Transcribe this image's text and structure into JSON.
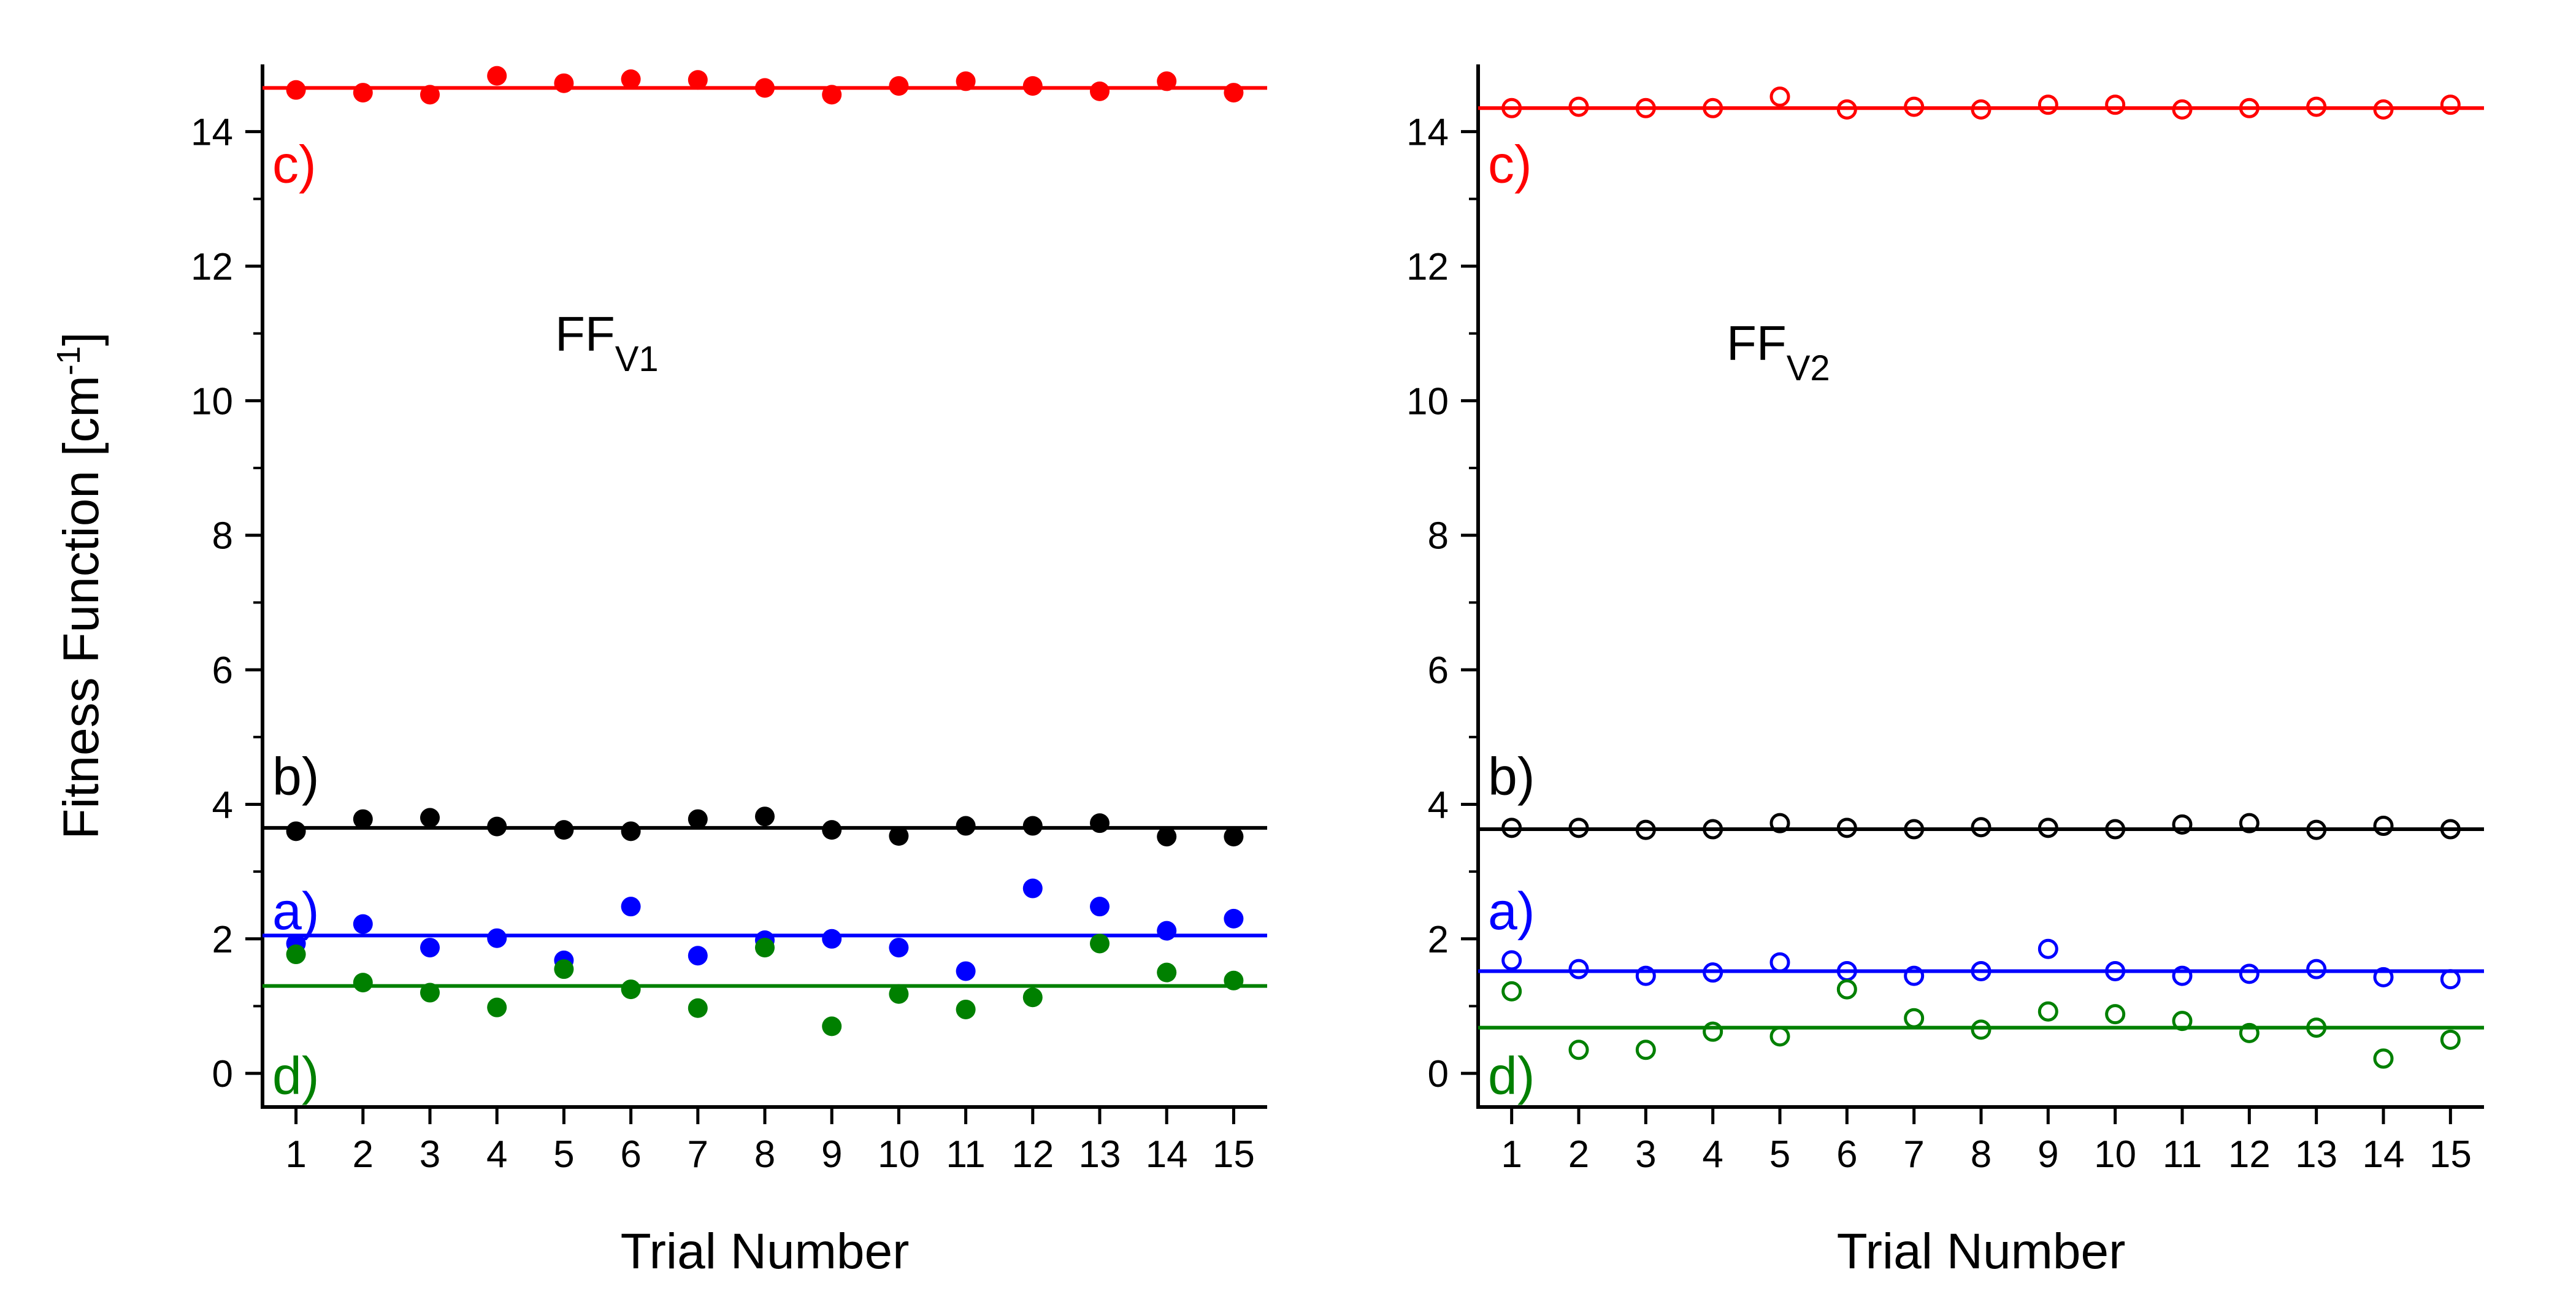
{
  "chart_data": [
    {
      "type": "scatter",
      "title": "FF",
      "title_subscript": "V1",
      "xlabel": "Trial Number",
      "ylabel": "Fitness Function [cm",
      "ylabel_superscript": "-1",
      "ylabel_suffix": "]",
      "marker": "filled",
      "x": [
        1,
        2,
        3,
        4,
        5,
        6,
        7,
        8,
        9,
        10,
        11,
        12,
        13,
        14,
        15
      ],
      "xlim": [
        0.5,
        15.5
      ],
      "ylim": [
        -0.5,
        15.0
      ],
      "xticks": [
        "1",
        "2",
        "3",
        "4",
        "5",
        "6",
        "7",
        "8",
        "9",
        "10",
        "11",
        "12",
        "13",
        "14",
        "15"
      ],
      "yticks": [
        0,
        2,
        4,
        6,
        8,
        10,
        12,
        14
      ],
      "ytick_labels": [
        "0",
        "2",
        "4",
        "6",
        "8",
        "10",
        "12",
        "14"
      ],
      "series": [
        {
          "name": "c)",
          "color": "#ff0000",
          "mean": 14.65,
          "label_y": 13.5,
          "values": [
            14.62,
            14.58,
            14.55,
            14.83,
            14.72,
            14.78,
            14.77,
            14.65,
            14.55,
            14.68,
            14.75,
            14.68,
            14.6,
            14.75,
            14.58
          ]
        },
        {
          "name": "b)",
          "color": "#000000",
          "mean": 3.65,
          "label_y": 4.4,
          "values": [
            3.6,
            3.78,
            3.8,
            3.67,
            3.62,
            3.6,
            3.78,
            3.82,
            3.62,
            3.53,
            3.68,
            3.68,
            3.72,
            3.52,
            3.52
          ]
        },
        {
          "name": "a)",
          "color": "#0000ff",
          "mean": 2.05,
          "label_y": 2.4,
          "values": [
            1.93,
            2.22,
            1.87,
            2.01,
            1.68,
            2.48,
            1.75,
            1.98,
            2.0,
            1.87,
            1.52,
            2.75,
            2.48,
            2.12,
            2.3
          ]
        },
        {
          "name": "d)",
          "color": "#008000",
          "mean": 1.3,
          "label_y": -0.05,
          "values": [
            1.77,
            1.35,
            1.2,
            0.98,
            1.55,
            1.25,
            0.97,
            1.87,
            0.7,
            1.18,
            0.95,
            1.13,
            1.93,
            1.5,
            1.38
          ]
        }
      ]
    },
    {
      "type": "scatter",
      "title": "FF",
      "title_subscript": "V2",
      "xlabel": "Trial Number",
      "marker": "open",
      "x": [
        1,
        2,
        3,
        4,
        5,
        6,
        7,
        8,
        9,
        10,
        11,
        12,
        13,
        14,
        15
      ],
      "xlim": [
        0.5,
        15.5
      ],
      "ylim": [
        -0.5,
        15.0
      ],
      "xticks": [
        "1",
        "2",
        "3",
        "4",
        "5",
        "6",
        "7",
        "8",
        "9",
        "10",
        "11",
        "12",
        "13",
        "14",
        "15"
      ],
      "yticks": [
        0,
        2,
        4,
        6,
        8,
        10,
        12,
        14
      ],
      "ytick_labels": [
        "0",
        "2",
        "4",
        "6",
        "8",
        "10",
        "12",
        "14"
      ],
      "series": [
        {
          "name": "c)",
          "color": "#ff0000",
          "mean": 14.35,
          "label_y": 13.5,
          "values": [
            14.35,
            14.37,
            14.35,
            14.35,
            14.52,
            14.33,
            14.37,
            14.33,
            14.4,
            14.4,
            14.33,
            14.35,
            14.37,
            14.33,
            14.4
          ]
        },
        {
          "name": "b)",
          "color": "#000000",
          "mean": 3.63,
          "label_y": 4.4,
          "values": [
            3.65,
            3.65,
            3.62,
            3.63,
            3.72,
            3.65,
            3.63,
            3.66,
            3.65,
            3.63,
            3.7,
            3.72,
            3.62,
            3.68,
            3.63
          ]
        },
        {
          "name": "a)",
          "color": "#0000ff",
          "mean": 1.52,
          "label_y": 2.4,
          "values": [
            1.68,
            1.55,
            1.45,
            1.5,
            1.65,
            1.52,
            1.45,
            1.52,
            1.85,
            1.52,
            1.45,
            1.48,
            1.55,
            1.43,
            1.4
          ]
        },
        {
          "name": "d)",
          "color": "#008000",
          "mean": 0.68,
          "label_y": -0.05,
          "values": [
            1.22,
            0.35,
            0.35,
            0.62,
            0.55,
            1.25,
            0.82,
            0.65,
            0.92,
            0.88,
            0.78,
            0.6,
            0.68,
            0.22,
            0.5
          ]
        }
      ]
    }
  ]
}
